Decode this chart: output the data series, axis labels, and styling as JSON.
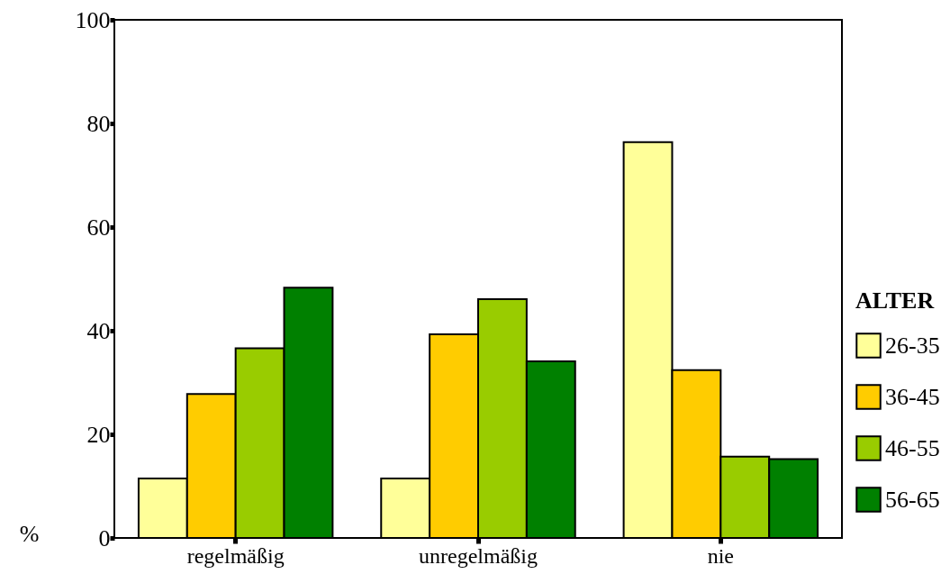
{
  "chart_data": {
    "type": "bar",
    "ylabel": "%",
    "legend_title": "ALTER",
    "categories": [
      "regelmäßig",
      "unregelmäßig",
      "nie"
    ],
    "series": [
      {
        "name": "26-35",
        "color": "#ffff99",
        "values": [
          11.5,
          11.5,
          76.4
        ]
      },
      {
        "name": "36-45",
        "color": "#ffcc00",
        "values": [
          27.8,
          39.3,
          32.4
        ]
      },
      {
        "name": "46-55",
        "color": "#99cc00",
        "values": [
          36.6,
          46.1,
          15.7
        ]
      },
      {
        "name": "56-65",
        "color": "#008000",
        "values": [
          48.3,
          34.1,
          15.2
        ]
      }
    ],
    "ylim": [
      0,
      100
    ],
    "yticks": [
      0,
      20,
      40,
      60,
      80,
      100
    ],
    "grid": false,
    "legend": "right"
  }
}
